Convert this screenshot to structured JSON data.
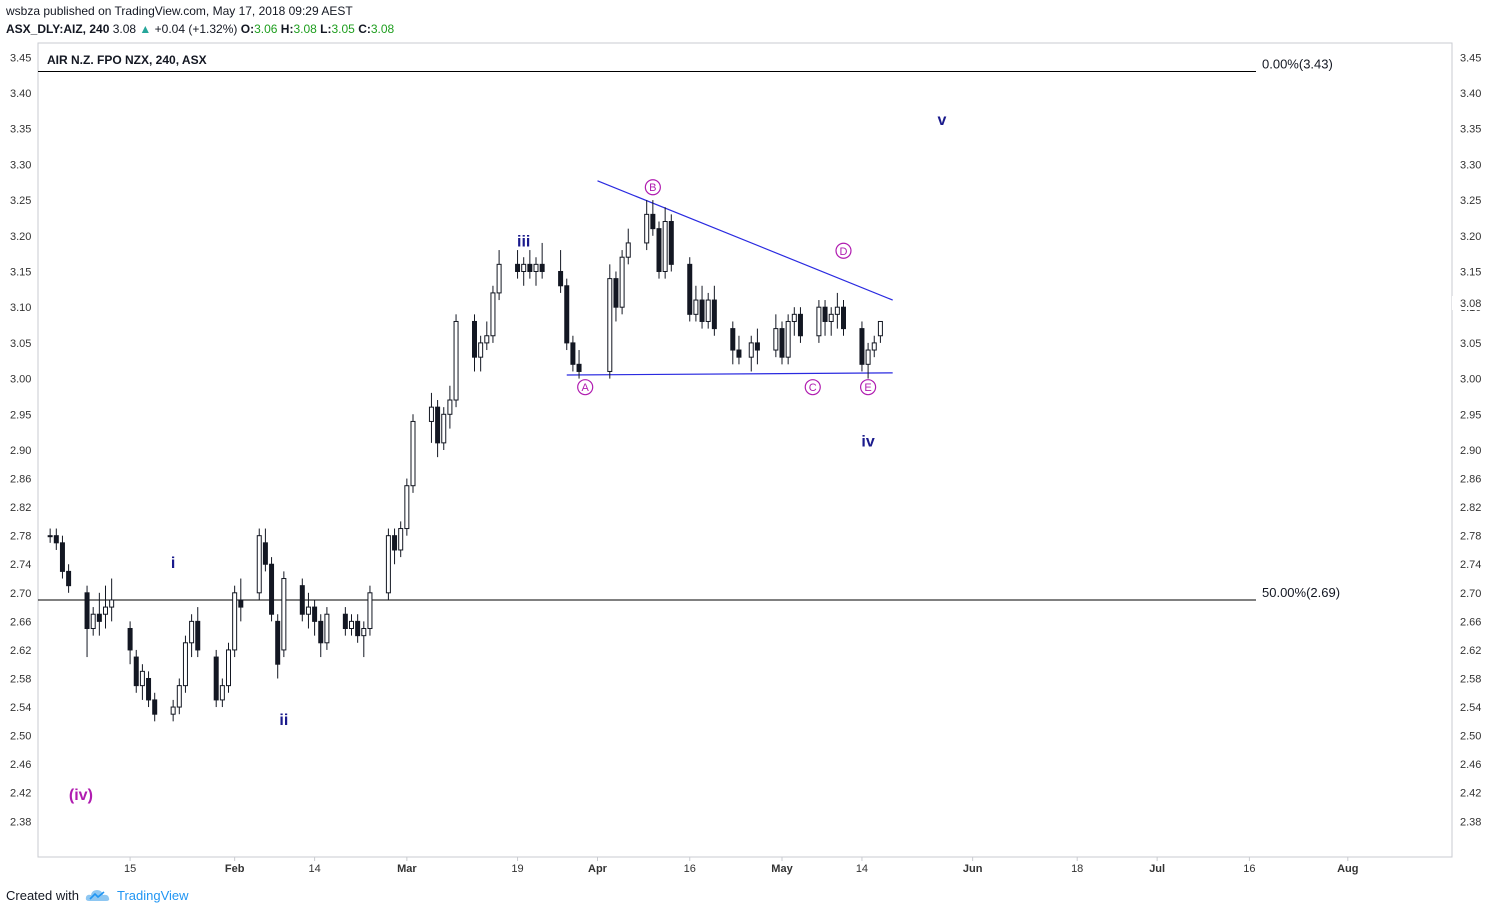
{
  "header": {
    "publisher": "wsbza",
    "published_text": "published on TradingView.com, May 17, 2018 09:29 AEST",
    "symbol": "ASX_DLY:AIZ, 240",
    "last": "3.08",
    "change": "+0.04 (+1.32%)",
    "o_label": "O:",
    "o": "3.06",
    "h_label": "H:",
    "h": "3.08",
    "l_label": "L:",
    "l": "3.05",
    "c_label": "C:",
    "c": "3.08"
  },
  "footer": {
    "created_with": "Created with",
    "brand": "TradingView"
  },
  "chart_data": {
    "type": "candlestick",
    "title": "AIR N.Z. FPO NZX, 240, ASX",
    "ylim": [
      2.33,
      3.47
    ],
    "y_ticks": [
      "3.45",
      "3.40",
      "3.35",
      "3.30",
      "3.25",
      "3.20",
      "3.15",
      "3.10",
      "3.05",
      "3.00",
      "2.95",
      "2.90",
      "2.86",
      "2.82",
      "2.78",
      "2.74",
      "2.70",
      "2.66",
      "2.62",
      "2.58",
      "2.54",
      "2.50",
      "2.46",
      "2.42",
      "2.38"
    ],
    "last_price_label": "3.08",
    "x_ticks": [
      "15",
      "Feb",
      "14",
      "Mar",
      "19",
      "Apr",
      "16",
      "May",
      "14",
      "Jun",
      "18",
      "Jul",
      "16",
      "Aug"
    ],
    "x_ticks_bold": [
      "Feb",
      "Mar",
      "Apr",
      "May",
      "Jun",
      "Jul",
      "Aug"
    ],
    "colors": {
      "candle": "#131722",
      "trendline": "#2a2ae0",
      "wave_blue": "#1a1a8c",
      "wave_magenta": "#b01cb0",
      "fib": "#000000"
    },
    "fib_levels": [
      {
        "label": "0.00%(3.43)",
        "price": 3.43
      },
      {
        "label": "50.00%(2.69)",
        "price": 2.69
      }
    ],
    "wave_labels": [
      {
        "text": "(iv)",
        "date": "2018-01-07",
        "price": 2.41,
        "color": "magenta"
      },
      {
        "text": "i",
        "date": "2018-01-22",
        "price": 2.735,
        "color": "blue"
      },
      {
        "text": "ii",
        "date": "2018-02-09",
        "price": 2.515,
        "color": "blue"
      },
      {
        "text": "iii",
        "date": "2018-03-20",
        "price": 3.185,
        "color": "blue"
      },
      {
        "text": "iv",
        "date": "2018-05-15",
        "price": 2.905,
        "color": "blue"
      },
      {
        "text": "v",
        "date": "2018-05-27",
        "price": 3.355,
        "color": "blue"
      }
    ],
    "triangle_points": [
      {
        "text": "A",
        "date": "2018-03-30",
        "price": 2.988
      },
      {
        "text": "B",
        "date": "2018-04-10",
        "price": 3.268
      },
      {
        "text": "C",
        "date": "2018-05-06",
        "price": 2.988
      },
      {
        "text": "D",
        "date": "2018-05-11",
        "price": 3.179
      },
      {
        "text": "E",
        "date": "2018-05-15",
        "price": 2.988
      }
    ],
    "trendlines": [
      {
        "from": {
          "date": "2018-04-01",
          "price": 3.277
        },
        "to": {
          "date": "2018-05-19",
          "price": 3.11
        }
      },
      {
        "from": {
          "date": "2018-03-27",
          "price": 3.005
        },
        "to": {
          "date": "2018-05-19",
          "price": 3.008
        }
      }
    ],
    "series": [
      {
        "ohlc": [
          [
            "2018-01-02",
            2.78,
            2.79,
            2.77,
            2.78
          ],
          [
            "2018-01-03",
            2.78,
            2.79,
            2.76,
            2.77
          ],
          [
            "2018-01-04",
            2.77,
            2.78,
            2.72,
            2.73
          ],
          [
            "2018-01-05",
            2.73,
            2.74,
            2.7,
            2.71
          ],
          [
            "2018-01-08",
            2.7,
            2.71,
            2.61,
            2.65
          ],
          [
            "2018-01-09",
            2.65,
            2.68,
            2.64,
            2.67
          ],
          [
            "2018-01-10",
            2.67,
            2.7,
            2.64,
            2.66
          ],
          [
            "2018-01-11",
            2.67,
            2.71,
            2.65,
            2.68
          ],
          [
            "2018-01-12",
            2.68,
            2.72,
            2.66,
            2.69
          ],
          [
            "2018-01-15",
            2.65,
            2.66,
            2.6,
            2.62
          ],
          [
            "2018-01-16",
            2.61,
            2.62,
            2.56,
            2.57
          ],
          [
            "2018-01-17",
            2.57,
            2.6,
            2.55,
            2.59
          ],
          [
            "2018-01-18",
            2.58,
            2.59,
            2.54,
            2.55
          ],
          [
            "2018-01-19",
            2.55,
            2.56,
            2.52,
            2.53
          ],
          [
            "2018-01-22",
            2.53,
            2.55,
            2.52,
            2.54
          ],
          [
            "2018-01-23",
            2.54,
            2.58,
            2.53,
            2.57
          ],
          [
            "2018-01-24",
            2.57,
            2.64,
            2.56,
            2.63
          ],
          [
            "2018-01-25",
            2.63,
            2.67,
            2.61,
            2.66
          ],
          [
            "2018-01-26",
            2.66,
            2.68,
            2.61,
            2.62
          ],
          [
            "2018-01-29",
            2.61,
            2.62,
            2.54,
            2.55
          ],
          [
            "2018-01-30",
            2.55,
            2.58,
            2.54,
            2.57
          ],
          [
            "2018-01-31",
            2.57,
            2.63,
            2.56,
            2.62
          ],
          [
            "2018-02-01",
            2.62,
            2.71,
            2.61,
            2.7
          ],
          [
            "2018-02-02",
            2.69,
            2.72,
            2.66,
            2.68
          ],
          [
            "2018-02-05",
            2.7,
            2.79,
            2.69,
            2.78
          ],
          [
            "2018-02-06",
            2.77,
            2.79,
            2.73,
            2.74
          ],
          [
            "2018-02-07",
            2.74,
            2.75,
            2.66,
            2.67
          ],
          [
            "2018-02-08",
            2.66,
            2.67,
            2.58,
            2.6
          ],
          [
            "2018-02-09",
            2.62,
            2.73,
            2.61,
            2.72
          ],
          [
            "2018-02-12",
            2.71,
            2.72,
            2.66,
            2.67
          ],
          [
            "2018-02-13",
            2.67,
            2.7,
            2.65,
            2.68
          ],
          [
            "2018-02-14",
            2.68,
            2.69,
            2.64,
            2.66
          ],
          [
            "2018-02-15",
            2.66,
            2.67,
            2.61,
            2.63
          ],
          [
            "2018-02-16",
            2.63,
            2.68,
            2.62,
            2.67
          ],
          [
            "2018-02-19",
            2.67,
            2.68,
            2.64,
            2.65
          ],
          [
            "2018-02-20",
            2.65,
            2.67,
            2.64,
            2.66
          ],
          [
            "2018-02-21",
            2.66,
            2.67,
            2.63,
            2.64
          ],
          [
            "2018-02-22",
            2.64,
            2.66,
            2.61,
            2.65
          ],
          [
            "2018-02-23",
            2.65,
            2.71,
            2.64,
            2.7
          ],
          [
            "2018-02-26",
            2.7,
            2.79,
            2.69,
            2.78
          ],
          [
            "2018-02-27",
            2.78,
            2.79,
            2.74,
            2.76
          ],
          [
            "2018-02-28",
            2.76,
            2.8,
            2.75,
            2.79
          ],
          [
            "2018-03-01",
            2.79,
            2.86,
            2.78,
            2.85
          ],
          [
            "2018-03-02",
            2.85,
            2.95,
            2.84,
            2.94
          ],
          [
            "2018-03-05",
            2.94,
            2.98,
            2.91,
            2.96
          ],
          [
            "2018-03-06",
            2.96,
            2.97,
            2.89,
            2.91
          ],
          [
            "2018-03-07",
            2.91,
            2.96,
            2.9,
            2.95
          ],
          [
            "2018-03-08",
            2.95,
            2.99,
            2.93,
            2.97
          ],
          [
            "2018-03-09",
            2.97,
            3.09,
            2.96,
            3.08
          ],
          [
            "2018-03-12",
            3.08,
            3.09,
            3.01,
            3.03
          ],
          [
            "2018-03-13",
            3.03,
            3.06,
            3.01,
            3.05
          ],
          [
            "2018-03-14",
            3.05,
            3.08,
            3.04,
            3.06
          ],
          [
            "2018-03-15",
            3.06,
            3.13,
            3.05,
            3.12
          ],
          [
            "2018-03-16",
            3.12,
            3.18,
            3.11,
            3.16
          ],
          [
            "2018-03-19",
            3.16,
            3.18,
            3.14,
            3.15
          ],
          [
            "2018-03-20",
            3.15,
            3.17,
            3.13,
            3.16
          ],
          [
            "2018-03-21",
            3.16,
            3.18,
            3.14,
            3.15
          ],
          [
            "2018-03-22",
            3.15,
            3.17,
            3.13,
            3.16
          ],
          [
            "2018-03-23",
            3.16,
            3.19,
            3.14,
            3.15
          ],
          [
            "2018-03-26",
            3.15,
            3.18,
            3.12,
            3.13
          ],
          [
            "2018-03-27",
            3.13,
            3.14,
            3.04,
            3.05
          ],
          [
            "2018-03-28",
            3.05,
            3.06,
            3.01,
            3.02
          ],
          [
            "2018-03-29",
            3.02,
            3.04,
            3.0,
            3.01
          ],
          [
            "2018-04-03",
            3.01,
            3.16,
            3.0,
            3.14
          ],
          [
            "2018-04-04",
            3.14,
            3.15,
            3.08,
            3.1
          ],
          [
            "2018-04-05",
            3.1,
            3.18,
            3.09,
            3.17
          ],
          [
            "2018-04-06",
            3.17,
            3.21,
            3.16,
            3.19
          ],
          [
            "2018-04-09",
            3.19,
            3.25,
            3.18,
            3.23
          ],
          [
            "2018-04-10",
            3.23,
            3.25,
            3.2,
            3.21
          ],
          [
            "2018-04-11",
            3.21,
            3.22,
            3.14,
            3.15
          ],
          [
            "2018-04-12",
            3.15,
            3.24,
            3.14,
            3.22
          ],
          [
            "2018-04-13",
            3.22,
            3.23,
            3.15,
            3.16
          ],
          [
            "2018-04-16",
            3.16,
            3.17,
            3.08,
            3.09
          ],
          [
            "2018-04-17",
            3.09,
            3.13,
            3.08,
            3.11
          ],
          [
            "2018-04-18",
            3.11,
            3.13,
            3.07,
            3.08
          ],
          [
            "2018-04-19",
            3.08,
            3.12,
            3.07,
            3.11
          ],
          [
            "2018-04-20",
            3.11,
            3.13,
            3.06,
            3.07
          ],
          [
            "2018-04-23",
            3.07,
            3.08,
            3.02,
            3.04
          ],
          [
            "2018-04-24",
            3.04,
            3.06,
            3.02,
            3.03
          ],
          [
            "2018-04-26",
            3.03,
            3.06,
            3.01,
            3.05
          ],
          [
            "2018-04-27",
            3.05,
            3.07,
            3.02,
            3.04
          ],
          [
            "2018-04-30",
            3.04,
            3.09,
            3.03,
            3.07
          ],
          [
            "2018-05-01",
            3.07,
            3.08,
            3.02,
            3.03
          ],
          [
            "2018-05-02",
            3.03,
            3.09,
            3.02,
            3.08
          ],
          [
            "2018-05-03",
            3.08,
            3.1,
            3.06,
            3.09
          ],
          [
            "2018-05-04",
            3.09,
            3.1,
            3.05,
            3.06
          ],
          [
            "2018-05-07",
            3.06,
            3.11,
            3.05,
            3.1
          ],
          [
            "2018-05-08",
            3.1,
            3.11,
            3.06,
            3.08
          ],
          [
            "2018-05-09",
            3.08,
            3.1,
            3.06,
            3.09
          ],
          [
            "2018-05-10",
            3.09,
            3.12,
            3.07,
            3.1
          ],
          [
            "2018-05-11",
            3.1,
            3.11,
            3.06,
            3.07
          ],
          [
            "2018-05-14",
            3.07,
            3.08,
            3.01,
            3.02
          ],
          [
            "2018-05-15",
            3.02,
            3.05,
            3.0,
            3.04
          ],
          [
            "2018-05-16",
            3.04,
            3.06,
            3.03,
            3.05
          ],
          [
            "2018-05-17",
            3.06,
            3.08,
            3.05,
            3.08
          ]
        ]
      }
    ]
  }
}
